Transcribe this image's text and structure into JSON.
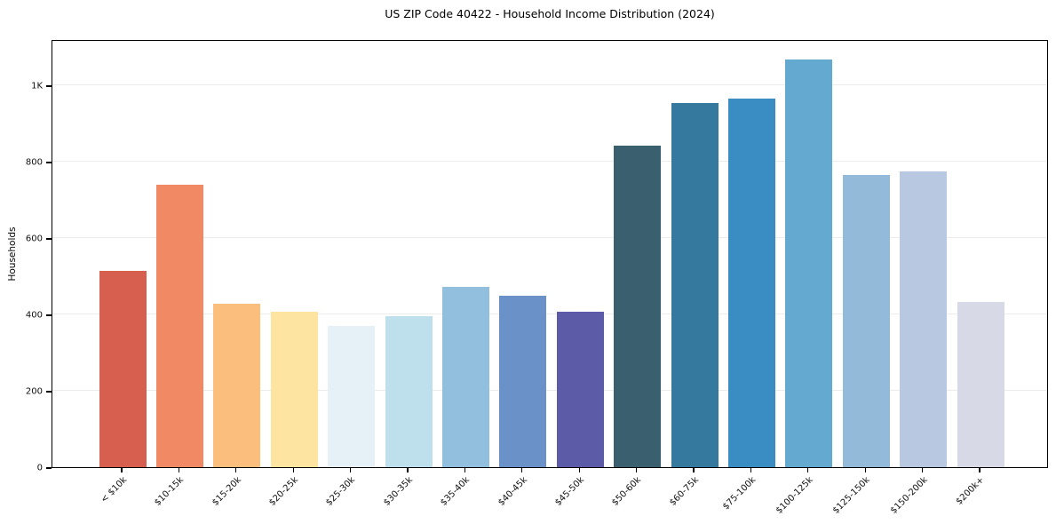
{
  "title": "US ZIP Code 40422 - Household Income Distribution (2024)",
  "chart_data": {
    "type": "bar",
    "title": "US ZIP Code 40422 - Household Income Distribution (2024)",
    "xlabel": "",
    "ylabel": "Households",
    "categories": [
      "< $10k",
      "$10-15k",
      "$15-20k",
      "$20-25k",
      "$25-30k",
      "$30-35k",
      "$35-40k",
      "$40-45k",
      "$45-50k",
      "$50-60k",
      "$60-75k",
      "$75-100k",
      "$100-125k",
      "$125-150k",
      "$150-200k",
      "$200k+"
    ],
    "values": [
      515,
      740,
      428,
      406,
      370,
      395,
      472,
      448,
      408,
      841,
      953,
      966,
      1068,
      766,
      775,
      433
    ],
    "bar_colors": [
      "#d65f50",
      "#f18a64",
      "#fcbe7d",
      "#fde4a1",
      "#e5f1f6",
      "#bee0ec",
      "#92bfdd",
      "#6b92c8",
      "#5b5ba8",
      "#3a5f6e",
      "#357a9e",
      "#3a8dc3",
      "#64a9d0",
      "#94bad9",
      "#b8c8e0",
      "#d8d9e7"
    ],
    "ylim": [
      0,
      1121
    ],
    "yticks": [
      {
        "value": 0,
        "label": "0"
      },
      {
        "value": 200,
        "label": "200"
      },
      {
        "value": 400,
        "label": "400"
      },
      {
        "value": 600,
        "label": "600"
      },
      {
        "value": 800,
        "label": "800"
      },
      {
        "value": 1000,
        "label": "1K"
      }
    ],
    "grid": "horizontal",
    "legend": "none",
    "background_color": "#ffffff",
    "axis_color": "#000000",
    "grid_color": "#ececec"
  }
}
